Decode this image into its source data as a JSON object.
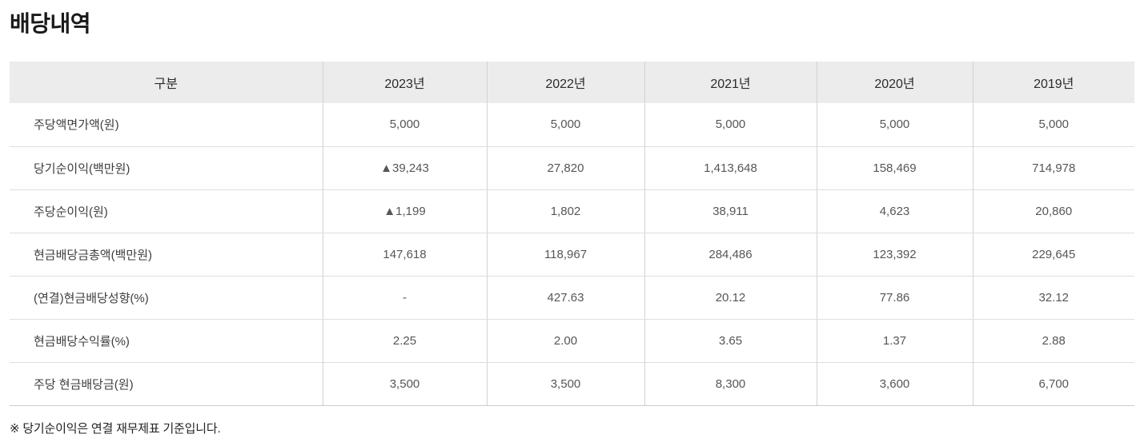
{
  "page": {
    "title": "배당내역",
    "footnote": "※ 당기순이익은 연결 재무제표 기준입니다."
  },
  "table": {
    "columns": [
      "구분",
      "2023년",
      "2022년",
      "2021년",
      "2020년",
      "2019년"
    ],
    "rows": [
      {
        "label": "주당액면가액(원)",
        "values": [
          "5,000",
          "5,000",
          "5,000",
          "5,000",
          "5,000"
        ]
      },
      {
        "label": "당기순이익(백만원)",
        "values": [
          "▲39,243",
          "27,820",
          "1,413,648",
          "158,469",
          "714,978"
        ]
      },
      {
        "label": "주당순이익(원)",
        "values": [
          "▲1,199",
          "1,802",
          "38,911",
          "4,623",
          "20,860"
        ]
      },
      {
        "label": "현금배당금총액(백만원)",
        "values": [
          "147,618",
          "118,967",
          "284,486",
          "123,392",
          "229,645"
        ]
      },
      {
        "label": "(연결)현금배당성향(%)",
        "values": [
          "-",
          "427.63",
          "20.12",
          "77.86",
          "32.12"
        ]
      },
      {
        "label": "현금배당수익률(%)",
        "values": [
          "2.25",
          "2.00",
          "3.65",
          "1.37",
          "2.88"
        ]
      },
      {
        "label": "주당 현금배당금(원)",
        "values": [
          "3,500",
          "3,500",
          "8,300",
          "3,600",
          "6,700"
        ]
      }
    ]
  },
  "colors": {
    "header_bg": "#ececec",
    "border_v": "#d2d2d2",
    "border_h": "#dedede",
    "border_bottom": "#cccccc",
    "title_color": "#1a1a1a",
    "header_text": "#2b2b2b",
    "label_text": "#3d3d3d",
    "cell_text": "#565656",
    "footnote_text": "#222222"
  }
}
